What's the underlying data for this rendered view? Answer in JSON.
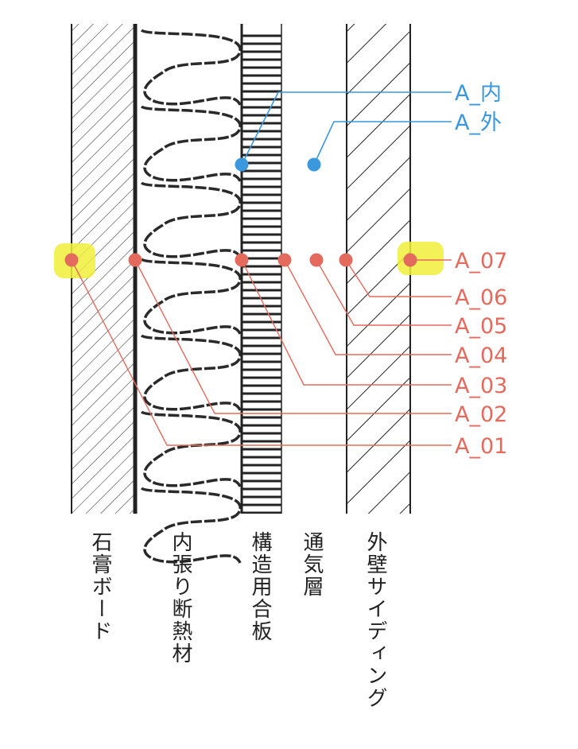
{
  "colors": {
    "red": "#e46a5e",
    "blue": "#3b97de",
    "highlight": "#f0ef3a",
    "line": "#222222"
  },
  "legend_blue": [
    "A_内",
    "A_外"
  ],
  "legend_red": [
    "A_07",
    "A_06",
    "A_05",
    "A_04",
    "A_03",
    "A_02",
    "A_01"
  ],
  "layers": [
    "石膏ボード",
    "内張り断熱材",
    "構造用合板",
    "通気層",
    "外壁サイディング"
  ]
}
